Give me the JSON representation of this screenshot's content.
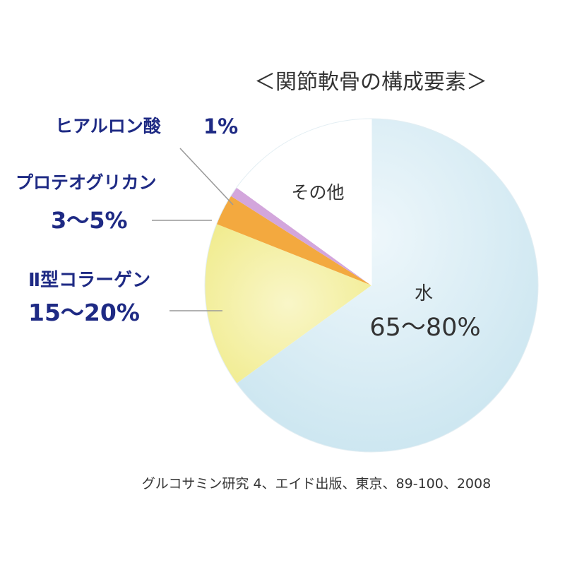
{
  "chart_data": {
    "type": "pie",
    "title": "＜関節軟骨の構成要素＞",
    "start_angle_deg": 0,
    "direction": "clockwise",
    "slices": [
      {
        "name": "水",
        "range_label": "65～80%",
        "value": 65.0,
        "color": "#cfe8f2"
      },
      {
        "name": "Ⅱ型コラーゲン",
        "range_label": "15～20%",
        "value": 16.0,
        "color": "#f5f0a0"
      },
      {
        "name": "プロテオグリカン",
        "range_label": "3～5%",
        "value": 3.0,
        "color": "#f3a93f"
      },
      {
        "name": "ヒアルロン酸",
        "range_label": "1%",
        "value": 1.0,
        "color": "#d3a6dc"
      },
      {
        "name": "その他",
        "range_label": "",
        "value": 15.0,
        "color": "#ffffff"
      }
    ],
    "labels": {
      "water": {
        "name": "水",
        "value": "65～80%"
      },
      "collagen": {
        "name": "Ⅱ型コラーゲン",
        "value": "15～20%"
      },
      "proteoglycan": {
        "name": "プロテオグリカン",
        "value": "3～5%"
      },
      "hyaluronic": {
        "name": "ヒアルロン酸",
        "value": "1%"
      },
      "other": {
        "name": "その他"
      }
    },
    "source": "グルコサミン研究 4、エイド出版、東京、89-100、2008"
  }
}
